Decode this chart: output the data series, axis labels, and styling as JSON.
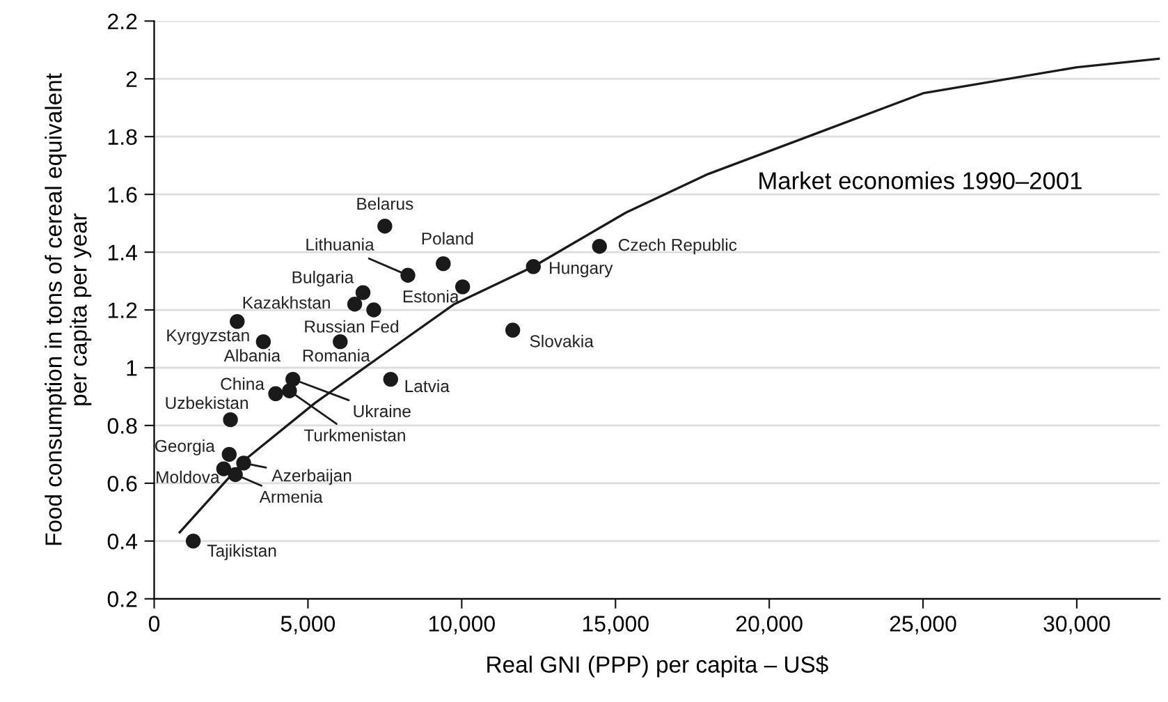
{
  "chart_data": {
    "type": "scatter",
    "xlabel": "Real GNI (PPP) per capita – US$",
    "ylabel": "Food consumption in tons of cereal equivalent\nper capita per year",
    "xlim": [
      0,
      32700
    ],
    "ylim": [
      0.2,
      2.2
    ],
    "xticks": [
      0,
      {
        "value": 5000,
        "label": "5,000"
      },
      {
        "value": 10000,
        "label": "10,000"
      },
      {
        "value": 15000,
        "label": "15,000"
      },
      {
        "value": 20000,
        "label": "20,000"
      },
      {
        "value": 25000,
        "label": "25,000"
      },
      {
        "value": 30000,
        "label": "30,000"
      }
    ],
    "yticks": [
      0.2,
      0.4,
      0.6,
      0.8,
      1,
      1.2,
      1.4,
      1.6,
      1.8,
      2,
      2.2
    ],
    "grid": "y",
    "series": [
      {
        "type": "line",
        "marker": "none",
        "color": "#1a1a1a",
        "x": [
          830,
          2970,
          5230,
          7500,
          9760,
          12330,
          15340,
          18000,
          21380,
          25000,
          30000,
          32700
        ],
        "values": [
          0.43,
          0.683,
          0.878,
          1.05,
          1.22,
          1.35,
          1.537,
          1.67,
          1.805,
          1.95,
          2.04,
          2.07
        ]
      },
      {
        "marker": "circle",
        "color": "#1a1a1a",
        "x": [
          7500,
          8250,
          9400,
          10030,
          6790,
          6520,
          7140,
          6050,
          2700,
          3550,
          3950,
          4510,
          4400,
          7690,
          2480,
          2440,
          2260,
          2910,
          2640,
          1270,
          12330,
          14480,
          11660
        ],
        "values": [
          1.49,
          1.32,
          1.36,
          1.28,
          1.26,
          1.22,
          1.2,
          1.09,
          1.16,
          1.09,
          0.91,
          0.96,
          0.92,
          0.96,
          0.82,
          0.7,
          0.65,
          0.67,
          0.63,
          0.4,
          1.35,
          1.42,
          1.13
        ]
      }
    ],
    "annotations": [
      "Market economies 1990–2001",
      {
        "text": "Belarus",
        "x": 7500,
        "y": 1.49
      },
      {
        "text": "Lithuania",
        "x": 8250,
        "y": 1.32
      },
      {
        "text": "Poland",
        "x": 9400,
        "y": 1.36
      },
      {
        "text": "Estonia",
        "x": 10030,
        "y": 1.28
      },
      {
        "text": "Bulgaria",
        "x": 6790,
        "y": 1.26
      },
      {
        "text": "Kazakhstan",
        "x": 6520,
        "y": 1.22
      },
      {
        "text": "Russian Fed",
        "x": 7140,
        "y": 1.2
      },
      {
        "text": "Romania",
        "x": 6050,
        "y": 1.09
      },
      {
        "text": "Kyrgyzstan",
        "x": 2700,
        "y": 1.16
      },
      {
        "text": "Albania",
        "x": 3550,
        "y": 1.09
      },
      {
        "text": "China",
        "x": 3950,
        "y": 0.91
      },
      {
        "text": "Ukraine",
        "x": 4510,
        "y": 0.96
      },
      {
        "text": "Turkmenistan",
        "x": 4400,
        "y": 0.92
      },
      {
        "text": "Latvia",
        "x": 7690,
        "y": 0.96
      },
      {
        "text": "Uzbekistan",
        "x": 2480,
        "y": 0.82
      },
      {
        "text": "Georgia",
        "x": 2440,
        "y": 0.7
      },
      {
        "text": "Moldova",
        "x": 2260,
        "y": 0.65
      },
      {
        "text": "Azerbaijan",
        "x": 2910,
        "y": 0.67
      },
      {
        "text": "Armenia",
        "x": 2640,
        "y": 0.63
      },
      {
        "text": "Tajikistan",
        "x": 1270,
        "y": 0.4
      },
      {
        "text": "Hungary",
        "x": 12330,
        "y": 1.35
      },
      {
        "text": "Czech Republic",
        "x": 14480,
        "y": 1.42
      },
      {
        "text": "Slovakia",
        "x": 11660,
        "y": 1.13
      }
    ]
  }
}
